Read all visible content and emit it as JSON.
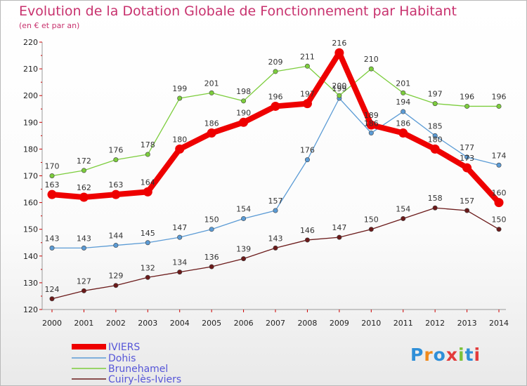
{
  "title": "Evolution de la Dotation Globale de Fonctionnement par Habitant",
  "subtitle": "(en € et par an)",
  "logo": {
    "text": "Proxiti",
    "colors": [
      "#2f8fd8",
      "#f08a1c",
      "#2f8fd8",
      "#e33b3b",
      "#7cc23a",
      "#2f8fd8",
      "#e33b3b"
    ]
  },
  "chart_data": {
    "type": "line",
    "title": "Evolution de la Dotation Globale de Fonctionnement par Habitant",
    "subtitle": "(en € et par an)",
    "x": [
      "2000",
      "2001",
      "2002",
      "2003",
      "2004",
      "2005",
      "2006",
      "2007",
      "2008",
      "2009",
      "2010",
      "2011",
      "2012",
      "2013",
      "2014"
    ],
    "ylim": [
      120,
      220
    ],
    "yticks": [
      120,
      130,
      140,
      150,
      160,
      170,
      180,
      190,
      200,
      210,
      220
    ],
    "grid": false,
    "legend": "bottom-left",
    "series": [
      {
        "name": "IVIERS",
        "color": "#ee0000",
        "values": [
          163,
          162,
          163,
          164,
          180,
          186,
          190,
          196,
          197,
          216,
          189,
          186,
          180,
          173,
          160
        ]
      },
      {
        "name": "Dohis",
        "color": "#5b9bd5",
        "values": [
          143,
          143,
          144,
          145,
          147,
          150,
          154,
          157,
          176,
          199,
          186,
          194,
          185,
          177,
          174
        ]
      },
      {
        "name": "Brunehamel",
        "color": "#7ccd3c",
        "values": [
          170,
          172,
          176,
          178,
          199,
          201,
          198,
          209,
          211,
          200,
          210,
          201,
          197,
          196,
          196
        ]
      },
      {
        "name": "Cuiry-lès-Iviers",
        "color": "#6b1a1a",
        "values": [
          124,
          127,
          129,
          132,
          134,
          136,
          139,
          143,
          146,
          147,
          150,
          154,
          158,
          157,
          150
        ]
      }
    ]
  }
}
